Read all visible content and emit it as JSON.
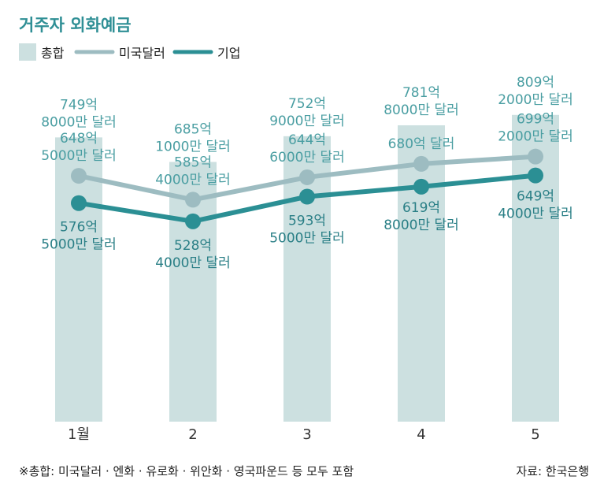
{
  "title": "거주자 외화예금",
  "footnote": "※총합: 미국달러 · 엔화 · 유로화 · 위안화 · 영국파운드 등 모두 포함",
  "source": "자료: 한국은행",
  "colors": {
    "total": "#cce0e0",
    "usd": "#9dbcc1",
    "corp": "#2b8f94",
    "label": "#4a9ea2",
    "title": "#2f8f95"
  },
  "chart_data": {
    "type": "bar",
    "categories": [
      "1월",
      "2",
      "3",
      "4",
      "5"
    ],
    "ylim": [
      0,
      1000
    ],
    "series": [
      {
        "name": "총합",
        "type": "bar",
        "values": [
          749.8,
          685.1,
          752.9,
          781.8,
          809.2
        ],
        "labels": [
          [
            "749억",
            "8000만 달러"
          ],
          [
            "685억",
            "1000만 달러"
          ],
          [
            "752억",
            "9000만 달러"
          ],
          [
            "781억",
            "8000만 달러"
          ],
          [
            "809억",
            "2000만 달러"
          ]
        ]
      },
      {
        "name": "미국달러",
        "type": "line",
        "values": [
          648.5,
          585.4,
          644.6,
          680,
          699.2
        ],
        "labels": [
          [
            "648억",
            "5000만 달러"
          ],
          [
            "585억",
            "4000만 달러"
          ],
          [
            "644억",
            "6000만 달러"
          ],
          [
            "680억 달러"
          ],
          [
            "699억",
            "2000만 달러"
          ]
        ]
      },
      {
        "name": "기업",
        "type": "line",
        "values": [
          576.5,
          528.4,
          593.5,
          619.8,
          649.4
        ],
        "labels": [
          [
            "576억",
            "5000만 달러"
          ],
          [
            "528억",
            "4000만 달러"
          ],
          [
            "593억",
            "5000만 달러"
          ],
          [
            "619억",
            "8000만 달러"
          ],
          [
            "649억",
            "4000만 달러"
          ]
        ]
      }
    ]
  }
}
